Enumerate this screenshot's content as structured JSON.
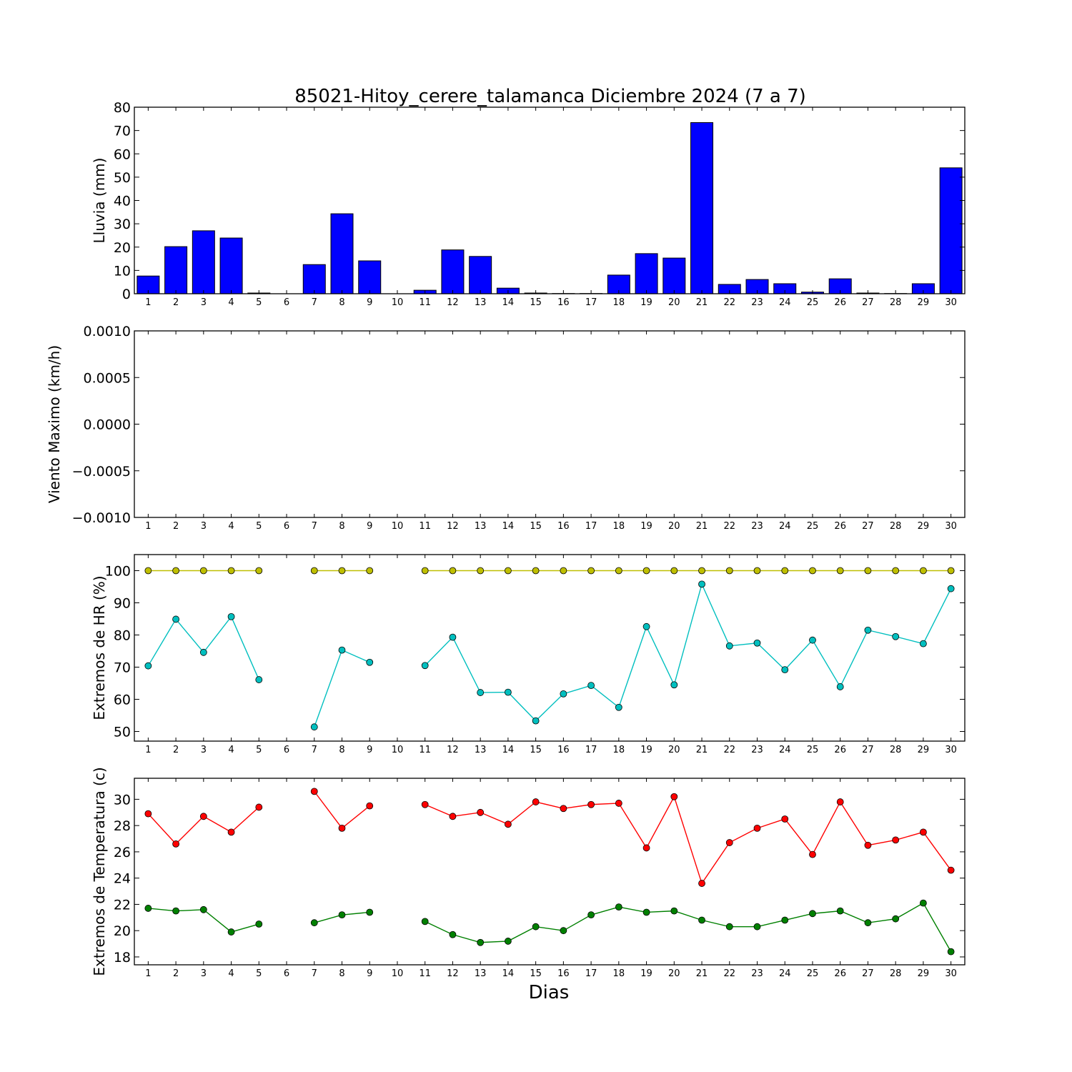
{
  "figure": {
    "title": "85021-Hitoy_cerere_talamanca Diciembre 2024  (7 a 7)",
    "xlabel": "Dias"
  },
  "colors": {
    "rain": "#0000ff",
    "hr_max": "#bfbf00",
    "hr_min": "#00bfbf",
    "temp_max": "#ff0000",
    "temp_min": "#008000"
  },
  "chart_data": [
    {
      "type": "bar",
      "ylabel": "Lluvia (mm)",
      "categories": [
        "1",
        "2",
        "3",
        "4",
        "5",
        "6",
        "7",
        "8",
        "9",
        "10",
        "11",
        "12",
        "13",
        "14",
        "15",
        "16",
        "17",
        "18",
        "19",
        "20",
        "21",
        "22",
        "23",
        "24",
        "25",
        "26",
        "27",
        "28",
        "29",
        "30"
      ],
      "values": [
        7.6,
        20.2,
        27.0,
        23.9,
        0.3,
        0,
        12.5,
        34.3,
        14.1,
        0,
        1.5,
        18.8,
        16.0,
        2.4,
        0.3,
        0.1,
        0.1,
        8.0,
        17.2,
        15.3,
        73.4,
        4.0,
        6.1,
        4.3,
        0.7,
        6.4,
        0.3,
        0.1,
        4.3,
        54.0
      ],
      "ylim": [
        0,
        80
      ],
      "yticks": [
        "0",
        "10",
        "20",
        "30",
        "40",
        "50",
        "60",
        "70",
        "80"
      ]
    },
    {
      "type": "line",
      "ylabel": "Viento Maximo (km/h)",
      "categories": [
        "1",
        "2",
        "3",
        "4",
        "5",
        "6",
        "7",
        "8",
        "9",
        "10",
        "11",
        "12",
        "13",
        "14",
        "15",
        "16",
        "17",
        "18",
        "19",
        "20",
        "21",
        "22",
        "23",
        "24",
        "25",
        "26",
        "27",
        "28",
        "29",
        "30"
      ],
      "series": [],
      "ylim": [
        -0.001,
        0.001
      ],
      "yticks": [
        "−0.0010",
        "−0.0005",
        "0.0000",
        "0.0005",
        "0.0010"
      ]
    },
    {
      "type": "line",
      "ylabel": "Extremos de HR (%)",
      "categories": [
        "1",
        "2",
        "3",
        "4",
        "5",
        "6",
        "7",
        "8",
        "9",
        "10",
        "11",
        "12",
        "13",
        "14",
        "15",
        "16",
        "17",
        "18",
        "19",
        "20",
        "21",
        "22",
        "23",
        "24",
        "25",
        "26",
        "27",
        "28",
        "29",
        "30"
      ],
      "series": [
        {
          "values": [
            100,
            100,
            100,
            100,
            100,
            null,
            100,
            100,
            100,
            null,
            100,
            100,
            100,
            100,
            100,
            100,
            100,
            100,
            100,
            100,
            100,
            100,
            100,
            100,
            100,
            100,
            100,
            100,
            100,
            100
          ]
        },
        {
          "values": [
            70.4,
            84.9,
            74.6,
            85.7,
            66.1,
            null,
            51.4,
            75.3,
            71.5,
            null,
            70.5,
            79.3,
            62.1,
            62.2,
            53.3,
            61.7,
            64.3,
            57.5,
            82.6,
            64.5,
            95.8,
            76.6,
            77.5,
            69.2,
            78.4,
            63.9,
            81.5,
            79.5,
            77.3,
            94.4
          ]
        }
      ],
      "ylim": [
        47,
        105
      ],
      "yticks": [
        "50",
        "60",
        "70",
        "80",
        "90",
        "100"
      ]
    },
    {
      "type": "line",
      "ylabel": "Extremos de Temperatura (c)",
      "categories": [
        "1",
        "2",
        "3",
        "4",
        "5",
        "6",
        "7",
        "8",
        "9",
        "10",
        "11",
        "12",
        "13",
        "14",
        "15",
        "16",
        "17",
        "18",
        "19",
        "20",
        "21",
        "22",
        "23",
        "24",
        "25",
        "26",
        "27",
        "28",
        "29",
        "30"
      ],
      "series": [
        {
          "values": [
            28.9,
            26.6,
            28.7,
            27.5,
            29.4,
            null,
            30.6,
            27.8,
            29.5,
            null,
            29.6,
            28.7,
            29.0,
            28.1,
            29.8,
            29.3,
            29.6,
            29.7,
            26.3,
            30.2,
            23.6,
            26.7,
            27.8,
            28.5,
            25.8,
            29.8,
            26.5,
            26.9,
            27.5,
            24.6
          ]
        },
        {
          "values": [
            21.7,
            21.5,
            21.6,
            19.9,
            20.5,
            null,
            20.6,
            21.2,
            21.4,
            null,
            20.7,
            19.7,
            19.1,
            19.2,
            20.3,
            20.0,
            21.2,
            21.8,
            21.4,
            21.5,
            20.8,
            20.3,
            20.3,
            20.8,
            21.3,
            21.5,
            20.6,
            20.9,
            22.1,
            18.4
          ]
        }
      ],
      "ylim": [
        17.4,
        31.6
      ],
      "yticks": [
        "18",
        "20",
        "22",
        "24",
        "26",
        "28",
        "30"
      ]
    }
  ]
}
